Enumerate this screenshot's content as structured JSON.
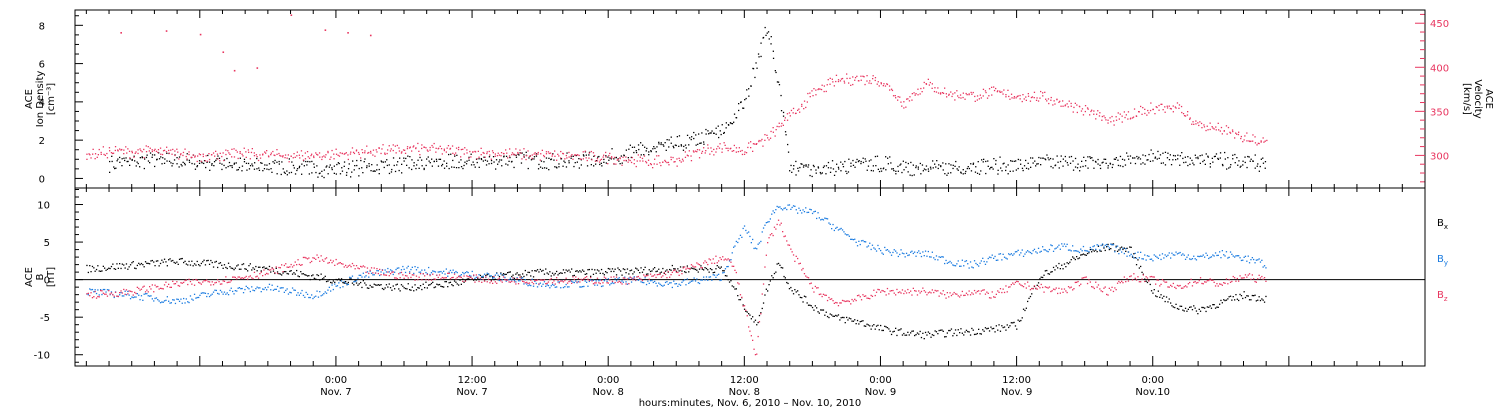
{
  "chart_data": [
    {
      "type": "scatter",
      "panel": "top",
      "ylabel_left": [
        "ACE",
        "Ion Density",
        "[cm⁻³]"
      ],
      "ylabel_right": [
        "ACE",
        "Velocity",
        "[km/s]"
      ],
      "ylim_left": [
        -0.5,
        8.8
      ],
      "ylim_right": [
        263,
        465
      ],
      "yticks_left": [
        0,
        2,
        4,
        6,
        8
      ],
      "yticks_right": [
        300,
        350,
        400,
        450
      ],
      "colors": {
        "density": "#000000",
        "velocity": "#e8355f"
      },
      "series": [
        {
          "name": "",
          "axis": "left",
          "color": "#000000",
          "points": [
            [
              -20,
              0.8
            ],
            [
              -16,
              1.0
            ],
            [
              -12,
              0.9
            ],
            [
              -8,
              0.7
            ],
            [
              -4,
              0.6
            ],
            [
              0,
              0.5
            ],
            [
              4,
              0.7
            ],
            [
              8,
              0.8
            ],
            [
              12,
              0.9
            ],
            [
              16,
              1.0
            ],
            [
              20,
              0.9
            ],
            [
              24,
              1.1
            ],
            [
              26,
              1.4
            ],
            [
              28,
              1.6
            ],
            [
              30,
              1.8
            ],
            [
              32,
              2.1
            ],
            [
              34,
              2.5
            ],
            [
              36,
              4.0
            ],
            [
              37,
              6.0
            ],
            [
              38,
              8.0
            ],
            [
              39,
              5.0
            ],
            [
              40,
              0.5
            ],
            [
              44,
              0.6
            ],
            [
              48,
              0.8
            ],
            [
              52,
              0.5
            ],
            [
              56,
              0.7
            ],
            [
              60,
              0.7
            ],
            [
              64,
              0.9
            ],
            [
              68,
              0.8
            ],
            [
              72,
              1.2
            ],
            [
              76,
              1.0
            ],
            [
              80,
              0.9
            ],
            [
              82,
              0.8
            ]
          ]
        },
        {
          "name": "",
          "axis": "right",
          "color": "#e8355f",
          "points": [
            [
              -22,
              300
            ],
            [
              -20,
              305
            ],
            [
              -16,
              305
            ],
            [
              -12,
              300
            ],
            [
              -8,
              302
            ],
            [
              -4,
              300
            ],
            [
              0,
              302
            ],
            [
              4,
              306
            ],
            [
              8,
              308
            ],
            [
              12,
              304
            ],
            [
              16,
              302
            ],
            [
              20,
              300
            ],
            [
              24,
              298
            ],
            [
              28,
              293
            ],
            [
              30,
              295
            ],
            [
              32,
              305
            ],
            [
              34,
              310
            ],
            [
              36,
              306
            ],
            [
              38,
              320
            ],
            [
              40,
              345
            ],
            [
              42,
              370
            ],
            [
              44,
              385
            ],
            [
              46,
              388
            ],
            [
              48,
              386
            ],
            [
              50,
              360
            ],
            [
              52,
              382
            ],
            [
              54,
              370
            ],
            [
              56,
              368
            ],
            [
              58,
              372
            ],
            [
              60,
              368
            ],
            [
              62,
              367
            ],
            [
              64,
              360
            ],
            [
              66,
              353
            ],
            [
              68,
              340
            ],
            [
              70,
              345
            ],
            [
              72,
              355
            ],
            [
              74,
              357
            ],
            [
              76,
              335
            ],
            [
              78,
              330
            ],
            [
              80,
              320
            ],
            [
              82,
              315
            ]
          ]
        },
        {
          "name": "",
          "axis": "right",
          "color": "#e8355f",
          "style": "sparse-points",
          "points": [
            [
              -19,
              440
            ],
            [
              -15,
              442
            ],
            [
              -12,
              438
            ],
            [
              -10,
              418
            ],
            [
              -9,
              397
            ],
            [
              -7,
              400
            ],
            [
              -4,
              460
            ],
            [
              -1,
              443
            ],
            [
              1,
              440
            ],
            [
              3,
              437
            ]
          ]
        }
      ]
    },
    {
      "type": "scatter",
      "panel": "bottom",
      "ylabel_left": [
        "ACE",
        "B",
        "[nT]"
      ],
      "ylim": [
        -11.5,
        12.2
      ],
      "yticks": [
        -10,
        -5,
        0,
        5,
        10
      ],
      "legend_position": "right",
      "legend_labels": {
        "bx_b": "B",
        "bx_s": "x",
        "by_b": "B",
        "by_s": "y",
        "bz_b": "B",
        "bz_s": "z"
      },
      "colors": {
        "Bx": "#000000",
        "By": "#1a7be0",
        "Bz": "#e8355f"
      },
      "series": [
        {
          "name": "Bx",
          "color": "#000000",
          "points": [
            [
              -22,
              1.5
            ],
            [
              -18,
              2.0
            ],
            [
              -14,
              2.5
            ],
            [
              -10,
              2.0
            ],
            [
              -6,
              1.5
            ],
            [
              -2,
              0.5
            ],
            [
              2,
              -0.5
            ],
            [
              6,
              -1.0
            ],
            [
              10,
              -0.5
            ],
            [
              14,
              0.5
            ],
            [
              18,
              1.0
            ],
            [
              22,
              1.0
            ],
            [
              26,
              1.2
            ],
            [
              30,
              1.5
            ],
            [
              34,
              1.5
            ],
            [
              35,
              -1.0
            ],
            [
              36,
              -3.5
            ],
            [
              37,
              -6.0
            ],
            [
              38,
              -1.0
            ],
            [
              39,
              2.5
            ],
            [
              40,
              -1.0
            ],
            [
              42,
              -3.5
            ],
            [
              44,
              -5.0
            ],
            [
              46,
              -5.5
            ],
            [
              48,
              -6.5
            ],
            [
              50,
              -7.0
            ],
            [
              52,
              -7.3
            ],
            [
              54,
              -7.0
            ],
            [
              56,
              -6.8
            ],
            [
              58,
              -6.5
            ],
            [
              60,
              -6.0
            ],
            [
              62,
              0.5
            ],
            [
              64,
              2.0
            ],
            [
              66,
              3.5
            ],
            [
              68,
              4.5
            ],
            [
              70,
              4.0
            ],
            [
              72,
              -1.5
            ],
            [
              74,
              -3.5
            ],
            [
              76,
              -4.0
            ],
            [
              78,
              -3.0
            ],
            [
              80,
              -2.0
            ],
            [
              82,
              -2.5
            ]
          ]
        },
        {
          "name": "By",
          "color": "#1a7be0",
          "points": [
            [
              -22,
              -1.5
            ],
            [
              -18,
              -2.0
            ],
            [
              -14,
              -2.8
            ],
            [
              -10,
              -1.5
            ],
            [
              -6,
              -1.0
            ],
            [
              -2,
              -2.0
            ],
            [
              2,
              0.5
            ],
            [
              6,
              1.5
            ],
            [
              10,
              1.0
            ],
            [
              14,
              0.5
            ],
            [
              18,
              -0.5
            ],
            [
              22,
              -0.5
            ],
            [
              26,
              0.0
            ],
            [
              30,
              -0.5
            ],
            [
              34,
              0.5
            ],
            [
              35,
              4.0
            ],
            [
              36,
              7.0
            ],
            [
              37,
              4.0
            ],
            [
              38,
              8.0
            ],
            [
              39,
              10.0
            ],
            [
              40,
              9.5
            ],
            [
              42,
              9.0
            ],
            [
              44,
              7.0
            ],
            [
              46,
              5.0
            ],
            [
              48,
              4.0
            ],
            [
              50,
              3.5
            ],
            [
              52,
              3.5
            ],
            [
              54,
              2.5
            ],
            [
              56,
              2.0
            ],
            [
              58,
              3.0
            ],
            [
              60,
              3.5
            ],
            [
              62,
              4.0
            ],
            [
              64,
              4.5
            ],
            [
              66,
              4.0
            ],
            [
              68,
              4.5
            ],
            [
              70,
              3.5
            ],
            [
              72,
              3.0
            ],
            [
              74,
              3.5
            ],
            [
              76,
              3.0
            ],
            [
              78,
              3.5
            ],
            [
              80,
              3.0
            ],
            [
              82,
              2.0
            ]
          ]
        },
        {
          "name": "Bz",
          "color": "#e8355f",
          "points": [
            [
              -22,
              -2.0
            ],
            [
              -18,
              -1.5
            ],
            [
              -14,
              -0.5
            ],
            [
              -10,
              0.0
            ],
            [
              -6,
              1.0
            ],
            [
              -2,
              3.0
            ],
            [
              2,
              1.5
            ],
            [
              6,
              0.5
            ],
            [
              10,
              0.5
            ],
            [
              14,
              0.0
            ],
            [
              18,
              0.0
            ],
            [
              22,
              0.0
            ],
            [
              26,
              0.0
            ],
            [
              30,
              1.0
            ],
            [
              34,
              3.0
            ],
            [
              35,
              2.0
            ],
            [
              36,
              -4.0
            ],
            [
              37,
              -10.0
            ],
            [
              38,
              5.0
            ],
            [
              39,
              8.0
            ],
            [
              40,
              4.0
            ],
            [
              42,
              -1.0
            ],
            [
              44,
              -3.0
            ],
            [
              46,
              -2.5
            ],
            [
              48,
              -1.5
            ],
            [
              50,
              -1.5
            ],
            [
              52,
              -1.5
            ],
            [
              54,
              -2.0
            ],
            [
              56,
              -1.5
            ],
            [
              58,
              -2.0
            ],
            [
              60,
              -0.5
            ],
            [
              62,
              -1.0
            ],
            [
              64,
              -1.5
            ],
            [
              66,
              0.0
            ],
            [
              68,
              -1.5
            ],
            [
              70,
              0.5
            ],
            [
              72,
              0.0
            ],
            [
              74,
              -1.0
            ],
            [
              76,
              0.0
            ],
            [
              78,
              -0.5
            ],
            [
              80,
              0.5
            ],
            [
              82,
              0.0
            ]
          ]
        }
      ]
    }
  ],
  "x_axis": {
    "range_hours": [
      -23,
      96
    ],
    "xlabel": "hours:minutes, Nov. 6, 2010 – Nov. 10, 2010",
    "ticks": [
      {
        "hour": 0,
        "time": "0:00",
        "date": "Nov. 7"
      },
      {
        "hour": 12,
        "time": "12:00",
        "date": "Nov. 7"
      },
      {
        "hour": 24,
        "time": "0:00",
        "date": "Nov. 8"
      },
      {
        "hour": 36,
        "time": "12:00",
        "date": "Nov. 8"
      },
      {
        "hour": 48,
        "time": "0:00",
        "date": "Nov. 9"
      },
      {
        "hour": 60,
        "time": "12:00",
        "date": "Nov. 9"
      },
      {
        "hour": 72,
        "time": "0:00",
        "date": "Nov.10"
      }
    ]
  }
}
